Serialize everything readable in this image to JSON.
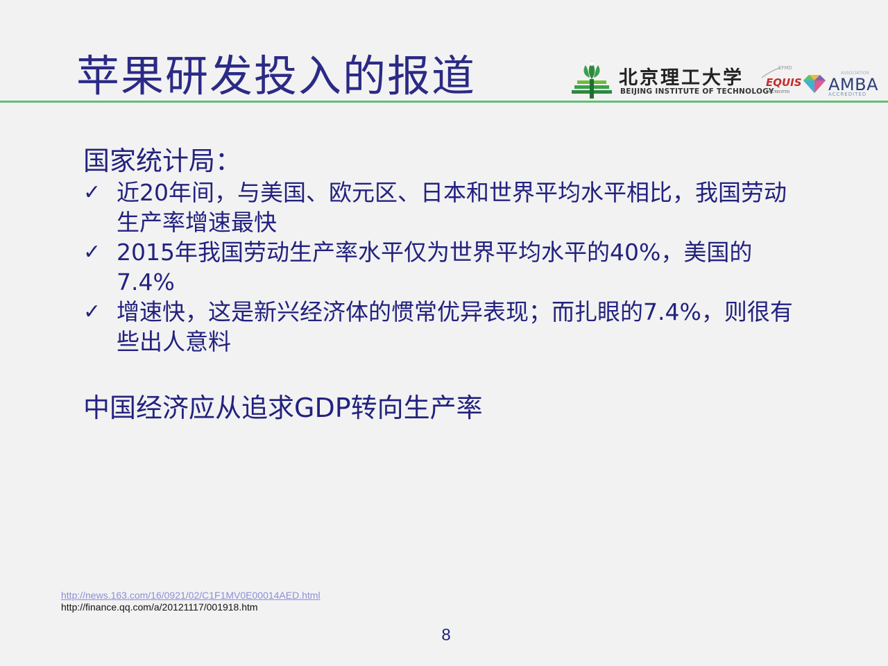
{
  "slide": {
    "title": "苹果研发投入的报道",
    "logos": {
      "university_cn": "北京理工大学",
      "university_en": "BEIJING INSTITUTE OF TECHNOLOGY",
      "equis_org": "EFMD",
      "equis_name": "EQUIS",
      "equis_status": "ACCREDITED",
      "amba_assoc": "ASSOCIATION",
      "amba_name": "AMBA",
      "amba_status": "ACCREDITED"
    },
    "heading": "国家统计局：",
    "bullets": [
      {
        "mark": "✓",
        "text": "近20年间，与美国、欧元区、日本和世界平均水平相比，我国劳动生产率增速最快"
      },
      {
        "mark": "✓",
        "text": "2015年我国劳动生产率水平仅为世界平均水平的40%，美国的7.4%"
      },
      {
        "mark": "✓",
        "text": "增速快，这是新兴经济体的惯常优异表现；而扎眼的7.4%，则很有些出人意料"
      }
    ],
    "conclusion": "中国经济应从追求GDP转向生产率",
    "sources": {
      "link": "http://news.163.com/16/0921/02/C1F1MV0E00014AED.html",
      "plain": "http://finance.qq.com/a/20121117/001918.htm"
    },
    "page_number": "8",
    "colors": {
      "text": "#23227f",
      "title": "#2b2a86",
      "rule": "#5fbf73",
      "background": "#f2f2f2",
      "link": "#8b8fd8"
    }
  }
}
